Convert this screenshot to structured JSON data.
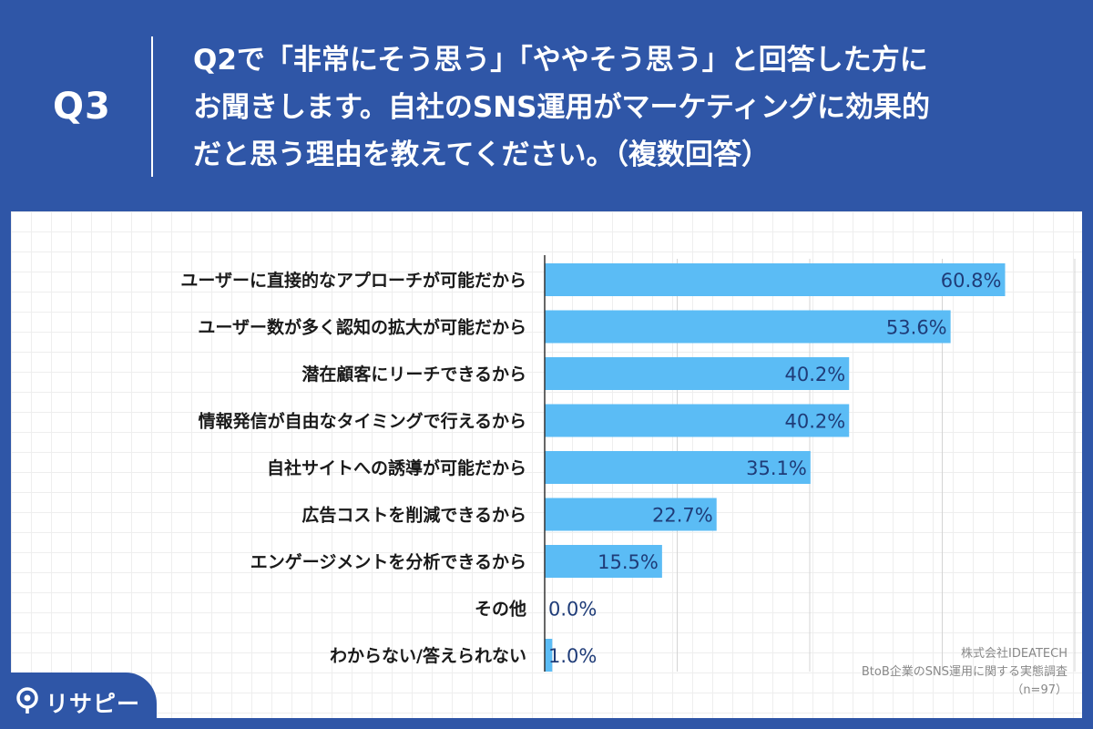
{
  "question": {
    "number": "Q3",
    "lines": [
      "Q2で「非常にそう思う」「ややそう思う」と回答した方に",
      "お聞きします。自社のSNS運用がマーケティングに効果的",
      "だと思う理由を教えてください。（複数回答）"
    ]
  },
  "source": {
    "company": "株式会社IDEATECH",
    "survey": "BtoB企業のSNS運用に関する実態調査",
    "sample": "（n=97）"
  },
  "brand": {
    "name": "リサピー"
  },
  "colors": {
    "background": "#2f56a7",
    "bar": "#5bbcf5",
    "value_text": "#1f3c78"
  },
  "chart_data": {
    "type": "bar",
    "orientation": "horizontal",
    "categories": [
      "ユーザーに直接的なアプローチが可能だから",
      "ユーザー数が多く認知の拡大が可能だから",
      "潜在顧客にリーチできるから",
      "情報発信が自由なタイミングで行えるから",
      "自社サイトへの誘導が可能だから",
      "広告コストを削減できるから",
      "エンゲージメントを分析できるから",
      "その他",
      "わからない/答えられない"
    ],
    "values": [
      60.8,
      53.6,
      40.2,
      40.2,
      35.1,
      22.7,
      15.5,
      0.0,
      1.0
    ],
    "value_labels": [
      "60.8%",
      "53.6%",
      "40.2%",
      "40.2%",
      "35.1%",
      "22.7%",
      "15.5%",
      "0.0%",
      "1.0%"
    ],
    "xlim": [
      0,
      70
    ],
    "grid": true
  }
}
